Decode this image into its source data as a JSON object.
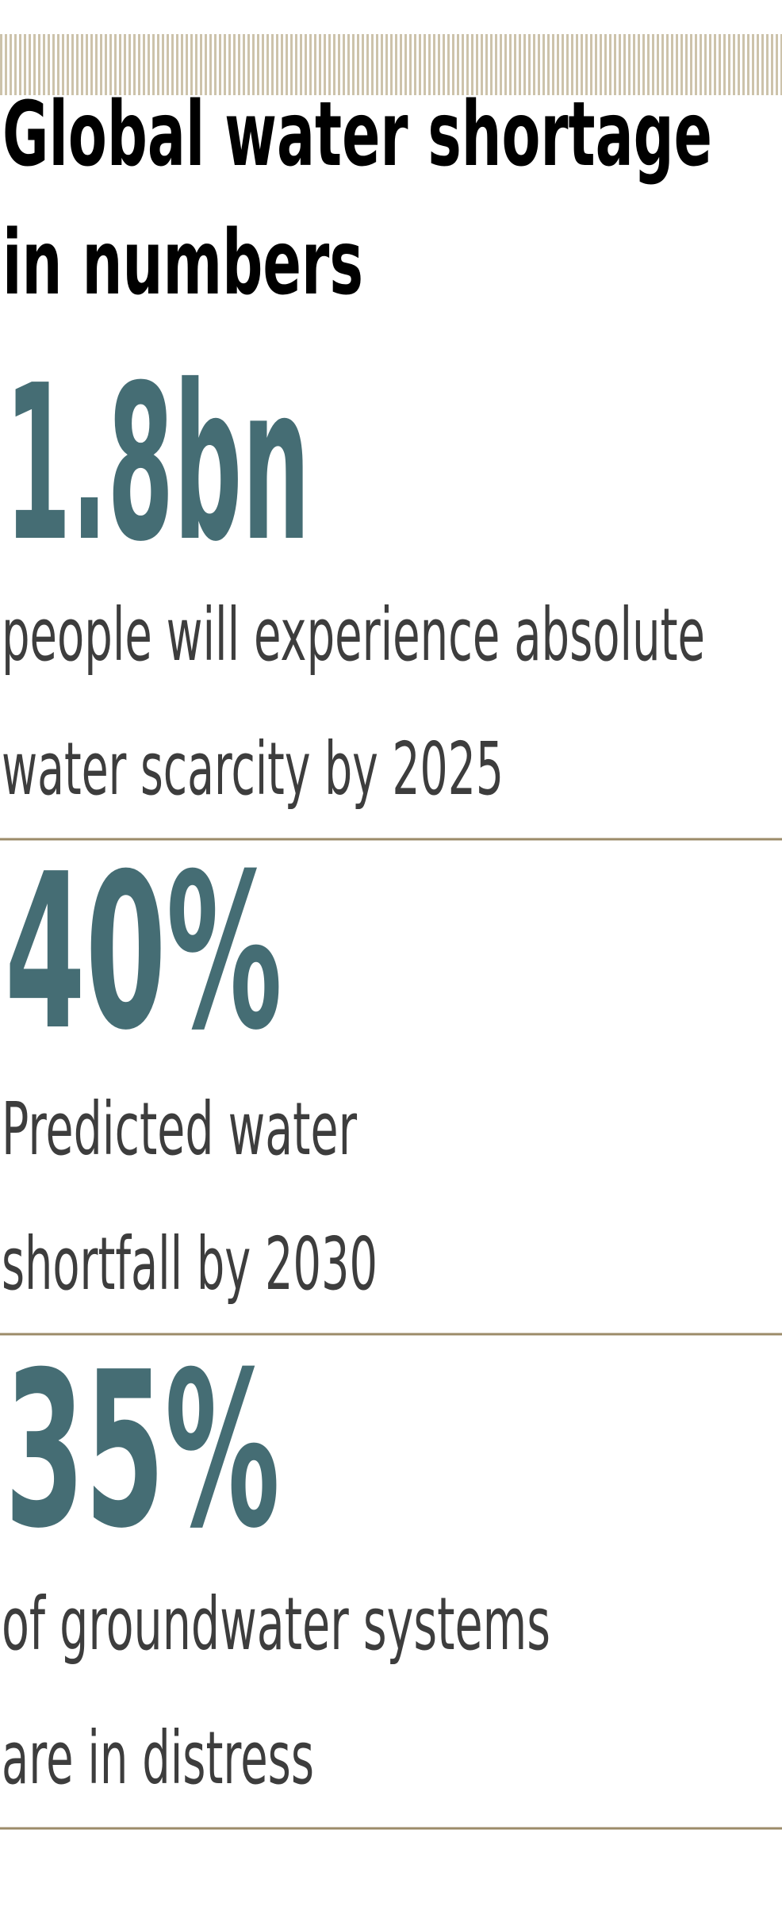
{
  "header": {
    "title_lines": [
      "Global water shortage",
      "in numbers"
    ]
  },
  "stats": [
    {
      "figure": "1.8bn",
      "lines": [
        "people will experience absolute",
        "water scarcity by 2025"
      ]
    },
    {
      "figure": "40%",
      "lines": [
        "Predicted water",
        "shortfall by 2030"
      ]
    },
    {
      "figure": "35%",
      "lines": [
        "of groundwater systems",
        "are in distress"
      ]
    }
  ]
}
